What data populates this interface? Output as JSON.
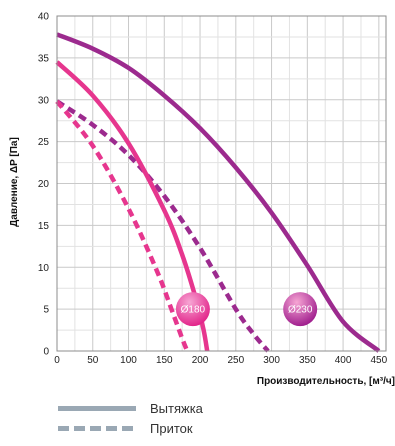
{
  "chart_data": {
    "type": "line",
    "xlabel": "Производительность, [м³/ч]",
    "ylabel": "Давление, ΔP [Па]",
    "xlim": [
      0,
      460
    ],
    "ylim": [
      0,
      40
    ],
    "xticks": [
      0,
      50,
      100,
      150,
      200,
      250,
      300,
      350,
      400,
      450
    ],
    "yticks": [
      0,
      5,
      10,
      15,
      20,
      25,
      30,
      35,
      40
    ],
    "grid": true,
    "series": [
      {
        "model": "Ø230",
        "mode": "extract",
        "color": "#9c2a8e",
        "dashed": false,
        "x": [
          0,
          50,
          100,
          150,
          200,
          250,
          300,
          350,
          400,
          450
        ],
        "y": [
          37.8,
          36.1,
          33.8,
          30.5,
          26.6,
          21.9,
          16.5,
          10.2,
          3.5,
          0
        ]
      },
      {
        "model": "Ø230",
        "mode": "supply",
        "color": "#9c2a8e",
        "dashed": true,
        "x": [
          0,
          50,
          100,
          150,
          200,
          250,
          275,
          295
        ],
        "y": [
          29.8,
          27.0,
          23.4,
          18.5,
          12.3,
          5.0,
          2.0,
          0
        ]
      },
      {
        "model": "Ø180",
        "mode": "extract",
        "color": "#e6368e",
        "dashed": false,
        "x": [
          0,
          50,
          100,
          150,
          175,
          195,
          205,
          210
        ],
        "y": [
          34.5,
          30.5,
          24.8,
          16.8,
          11.5,
          6.0,
          2.5,
          0
        ]
      },
      {
        "model": "Ø180",
        "mode": "supply",
        "color": "#e6368e",
        "dashed": true,
        "x": [
          0,
          50,
          100,
          140,
          160,
          175,
          182
        ],
        "y": [
          29.8,
          24.5,
          17.0,
          9.5,
          5.0,
          1.5,
          0
        ]
      }
    ],
    "annotations": [
      {
        "text": "Ø180",
        "x": 190,
        "y": 5,
        "color": "#e2258a"
      },
      {
        "text": "Ø230",
        "x": 340,
        "y": 5,
        "color": "#a01f8e"
      }
    ]
  },
  "legend": [
    {
      "label": "Вытяжка",
      "color": "#9aa8b4",
      "dashed": false
    },
    {
      "label": "Приток",
      "color": "#9aa8b4",
      "dashed": true
    }
  ]
}
